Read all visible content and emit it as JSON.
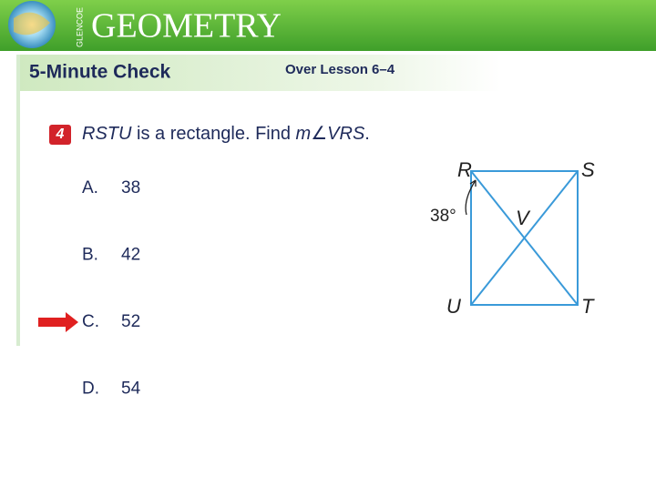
{
  "header": {
    "brand": "GLENCOE",
    "title": "GEOMETRY"
  },
  "section": {
    "title": "5-Minute Check",
    "lesson": "Over Lesson 6–4"
  },
  "question": {
    "number": "4",
    "parts": [
      "RSTU",
      " is a rectangle. Find ",
      "m",
      "∠",
      "VRS",
      "."
    ]
  },
  "choices": [
    {
      "letter": "A.",
      "text": "38"
    },
    {
      "letter": "B.",
      "text": "42"
    },
    {
      "letter": "C.",
      "text": "52"
    },
    {
      "letter": "D.",
      "text": "54"
    }
  ],
  "selected": 2,
  "diagram": {
    "R": "R",
    "S": "S",
    "T": "T",
    "U": "U",
    "V": "V",
    "angle": "38°"
  }
}
